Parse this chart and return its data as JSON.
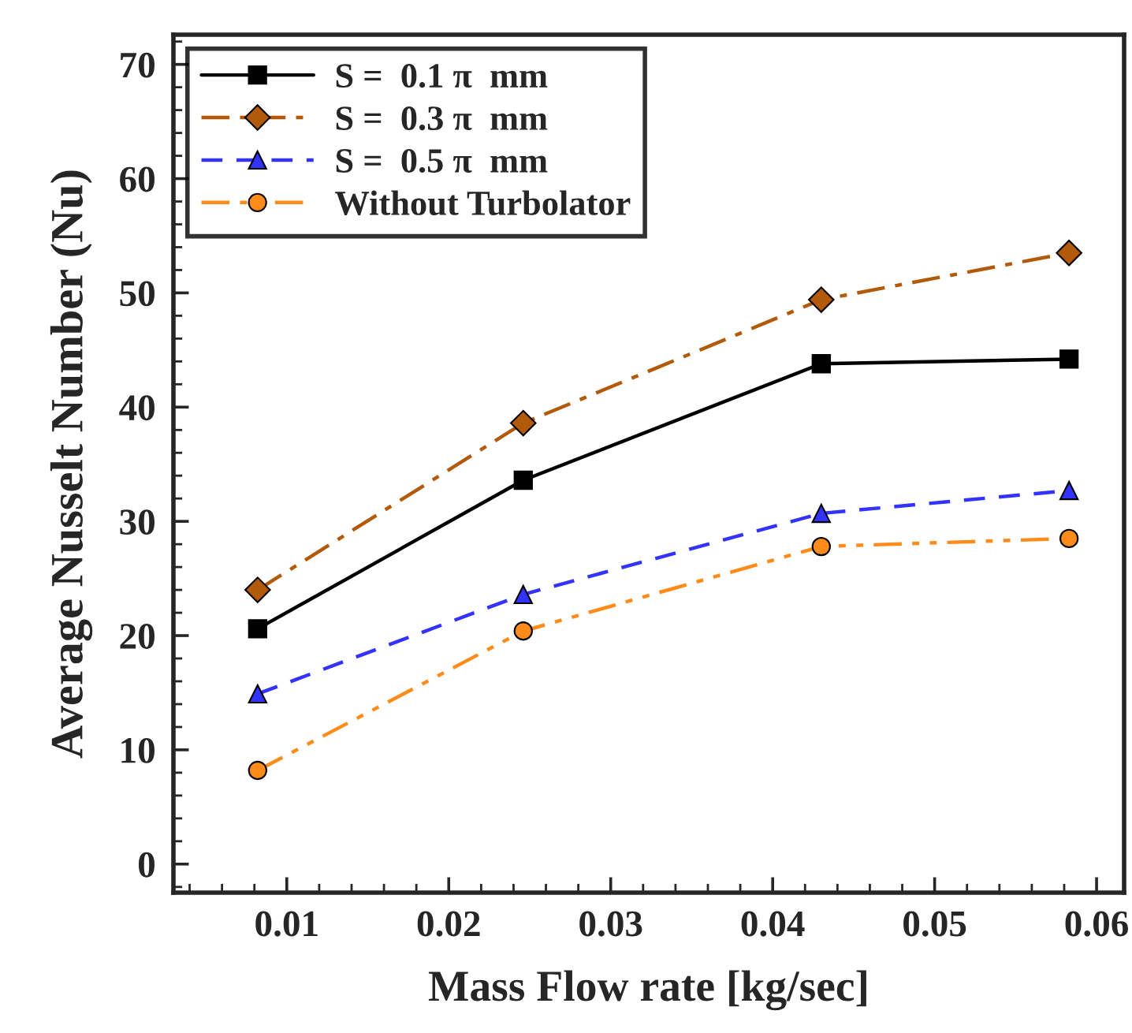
{
  "chart_data": {
    "type": "line",
    "xlabel": "Mass Flow rate [kg/sec]",
    "ylabel": "Average Nusselt Number (Nu)",
    "x": [
      0.0082,
      0.0246,
      0.043,
      0.0583
    ],
    "series": [
      {
        "name": "S =  0.1 π  mm",
        "color": "#000000",
        "marker": "square",
        "line_style": "solid",
        "values": [
          20.6,
          33.6,
          43.8,
          44.2
        ]
      },
      {
        "name": "S =  0.3 π  mm",
        "color": "#b35a0a",
        "marker": "diamond",
        "line_style": "dashdot",
        "values": [
          24.0,
          38.6,
          49.4,
          53.5
        ]
      },
      {
        "name": "S =  0.5 π  mm",
        "color": "#3333ff",
        "marker": "triangle",
        "line_style": "dashed",
        "values": [
          14.9,
          23.6,
          30.7,
          32.7
        ]
      },
      {
        "name": "Without Turbolator",
        "color": "#ff8c1a",
        "marker": "circle",
        "line_style": "dashdotdot",
        "values": [
          8.2,
          20.4,
          27.8,
          28.5
        ]
      }
    ],
    "xlim": [
      0.003,
      0.0617
    ],
    "xticks": [
      0.01,
      0.02,
      0.03,
      0.04,
      0.05,
      0.06
    ],
    "ylim": [
      -2.5,
      72.6
    ],
    "yticks": [
      0,
      10,
      20,
      30,
      40,
      50,
      60,
      70
    ],
    "grid": false,
    "legend": "top left"
  }
}
